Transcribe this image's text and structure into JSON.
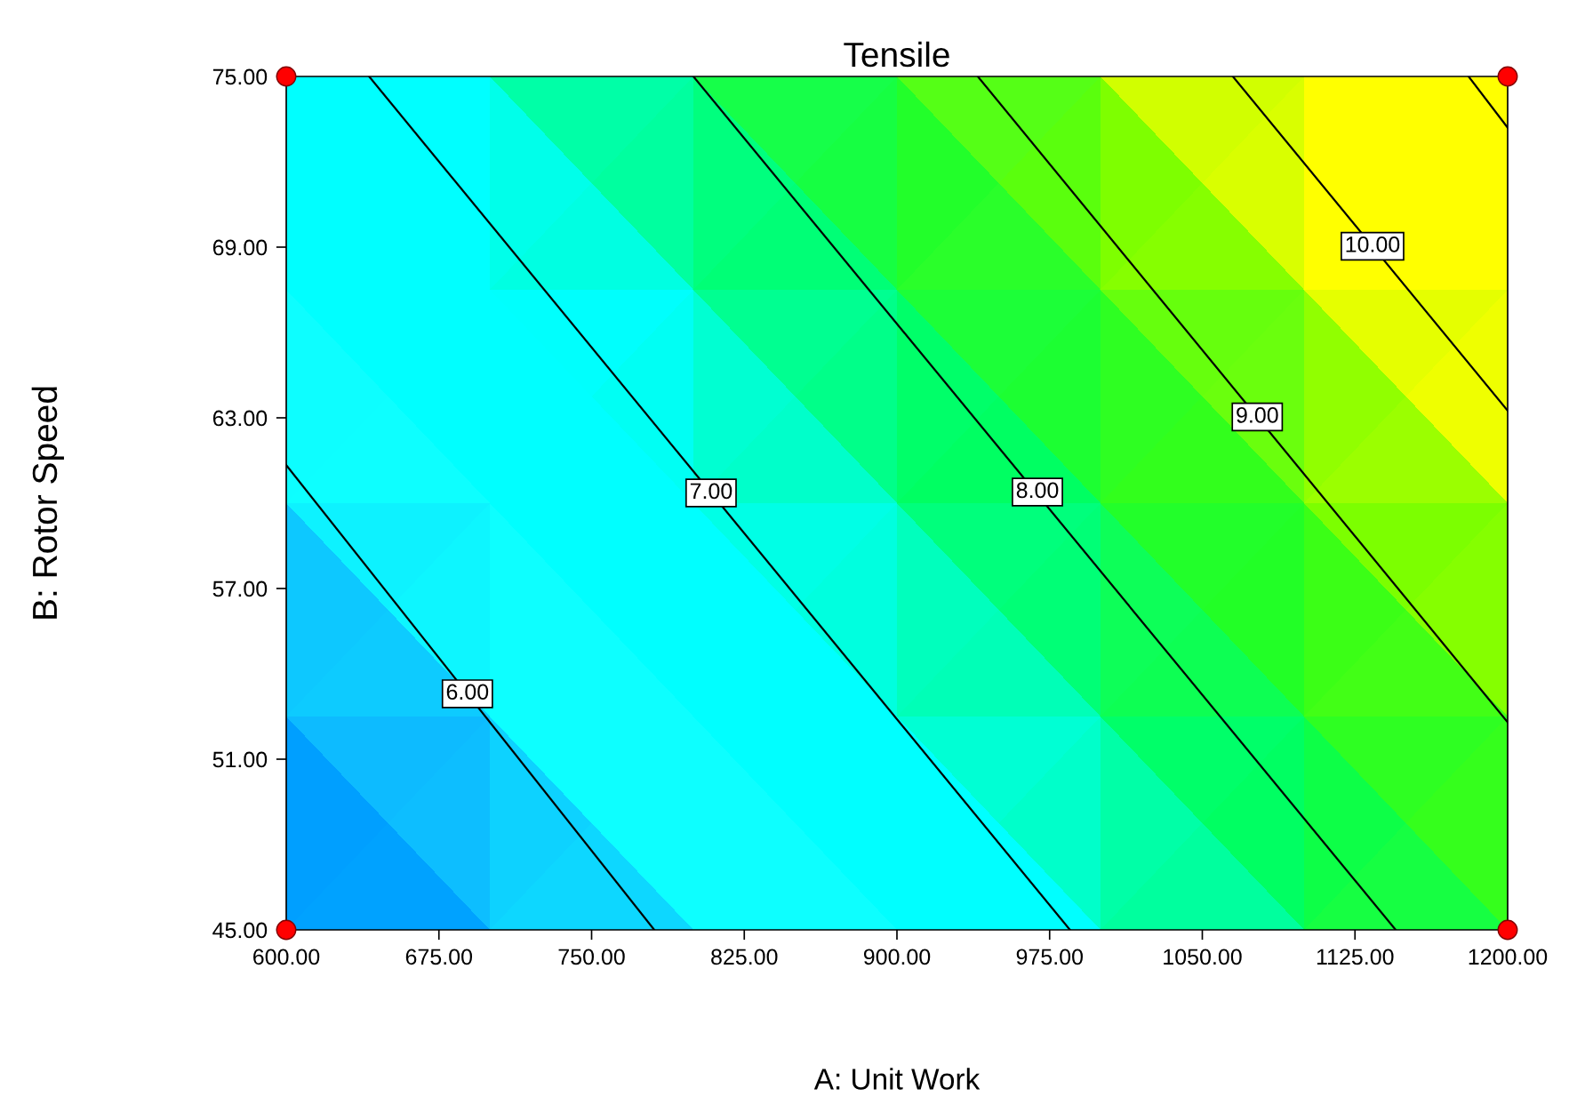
{
  "chart_data": {
    "type": "line",
    "title": "Tensile",
    "xlabel": "A: Unit Work",
    "ylabel": "B: Rotor Speed",
    "xlim": [
      600,
      1200
    ],
    "ylim": [
      45,
      75
    ],
    "xticks": [
      {
        "value": 600,
        "label": "600.00"
      },
      {
        "value": 675,
        "label": "675.00"
      },
      {
        "value": 750,
        "label": "750.00"
      },
      {
        "value": 825,
        "label": "825.00"
      },
      {
        "value": 900,
        "label": "900.00"
      },
      {
        "value": 975,
        "label": "975.00"
      },
      {
        "value": 1050,
        "label": "1050.00"
      },
      {
        "value": 1125,
        "label": "1125.00"
      },
      {
        "value": 1200,
        "label": "1200.00"
      }
    ],
    "yticks": [
      {
        "value": 45,
        "label": "45.00"
      },
      {
        "value": 51,
        "label": "51.00"
      },
      {
        "value": 57,
        "label": "57.00"
      },
      {
        "value": 63,
        "label": "63.00"
      },
      {
        "value": 69,
        "label": "69.00"
      },
      {
        "value": 75,
        "label": "75.00"
      }
    ],
    "grid": false,
    "legend": false,
    "series": [
      {
        "color": "#000000",
        "x": [
          600,
          780.8
        ],
        "values": [
          61.34,
          45
        ]
      },
      {
        "color": "#000000",
        "x": [
          640.7,
          985
        ],
        "values": [
          75,
          45
        ]
      },
      {
        "color": "#000000",
        "x": [
          800,
          1145
        ],
        "values": [
          75,
          45
        ]
      },
      {
        "color": "#000000",
        "x": [
          939.7,
          1200
        ],
        "values": [
          75,
          52.3
        ]
      },
      {
        "color": "#000000",
        "x": [
          1065,
          1200
        ],
        "values": [
          75,
          63.25
        ]
      },
      {
        "color": "#000000",
        "x": [
          1180.8,
          1200
        ],
        "values": [
          75,
          73.2
        ]
      },
      {
        "type": "scatter",
        "color": "#ff0000",
        "marker": "circle",
        "x": [
          600,
          600,
          1200,
          1200
        ],
        "values": [
          45,
          75,
          45,
          75
        ]
      }
    ],
    "annotations": [
      {
        "text": "6.00",
        "x": 689,
        "y": 53.3
      },
      {
        "text": "7.00",
        "x": 808.7,
        "y": 60.36
      },
      {
        "text": "8.00",
        "x": 969,
        "y": 60.39
      },
      {
        "text": "9.00",
        "x": 1077,
        "y": 63.03
      },
      {
        "text": "10.00",
        "x": 1133.6,
        "y": 69.03
      }
    ]
  }
}
